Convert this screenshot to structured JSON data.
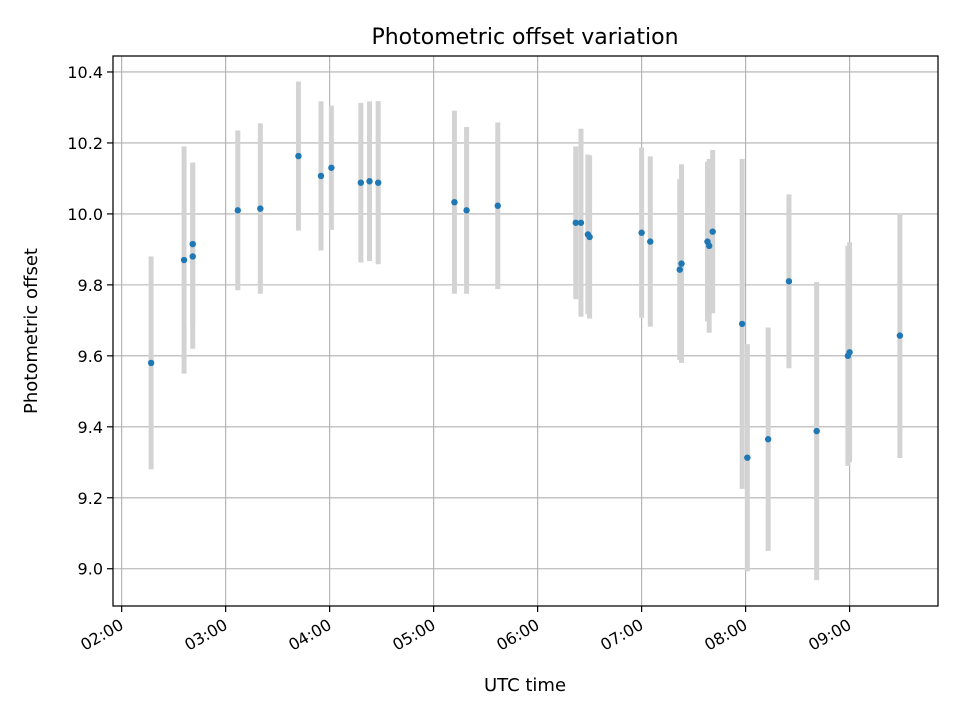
{
  "chart_data": {
    "type": "scatter",
    "title": "Photometric offset variation",
    "xlabel": "UTC time",
    "ylabel": "Photometric offset",
    "xlim": [
      "01:55",
      "09:51"
    ],
    "ylim": [
      8.895,
      10.445
    ],
    "grid": true,
    "x_ticks": [
      "02:00",
      "03:00",
      "04:00",
      "05:00",
      "06:00",
      "07:00",
      "08:00",
      "09:00"
    ],
    "y_ticks": [
      "9.0",
      "9.2",
      "9.4",
      "9.6",
      "9.8",
      "10.0",
      "10.2",
      "10.4"
    ],
    "colors": {
      "marker": "#1f77b4",
      "errorbar": "#d3d3d3",
      "grid": "#b0b0b0"
    },
    "points": [
      {
        "x": "02:17",
        "y": 9.58,
        "yerr": 0.3
      },
      {
        "x": "02:36",
        "y": 9.87,
        "yerr": 0.32
      },
      {
        "x": "02:41",
        "y": 9.88,
        "yerr": 0.26
      },
      {
        "x": "02:41",
        "y": 9.915,
        "yerr": 0.23
      },
      {
        "x": "03:07",
        "y": 10.01,
        "yerr": 0.225
      },
      {
        "x": "03:20",
        "y": 10.015,
        "yerr": 0.24
      },
      {
        "x": "03:42",
        "y": 10.163,
        "yerr": 0.21
      },
      {
        "x": "03:55",
        "y": 10.107,
        "yerr": 0.21
      },
      {
        "x": "04:01",
        "y": 10.13,
        "yerr": 0.175
      },
      {
        "x": "04:18",
        "y": 10.088,
        "yerr": 0.225
      },
      {
        "x": "04:23",
        "y": 10.092,
        "yerr": 0.225
      },
      {
        "x": "04:28",
        "y": 10.088,
        "yerr": 0.23
      },
      {
        "x": "05:12",
        "y": 10.033,
        "yerr": 0.258
      },
      {
        "x": "05:19",
        "y": 10.01,
        "yerr": 0.235
      },
      {
        "x": "05:37",
        "y": 10.023,
        "yerr": 0.235
      },
      {
        "x": "06:22",
        "y": 9.975,
        "yerr": 0.215
      },
      {
        "x": "06:25",
        "y": 9.975,
        "yerr": 0.265
      },
      {
        "x": "06:29",
        "y": 9.942,
        "yerr": 0.225
      },
      {
        "x": "06:30",
        "y": 9.935,
        "yerr": 0.23
      },
      {
        "x": "07:00",
        "y": 9.947,
        "yerr": 0.24
      },
      {
        "x": "07:05",
        "y": 9.922,
        "yerr": 0.24
      },
      {
        "x": "07:22",
        "y": 9.843,
        "yerr": 0.255
      },
      {
        "x": "07:23",
        "y": 9.86,
        "yerr": 0.28
      },
      {
        "x": "07:38",
        "y": 9.922,
        "yerr": 0.225
      },
      {
        "x": "07:39",
        "y": 9.91,
        "yerr": 0.245
      },
      {
        "x": "07:41",
        "y": 9.95,
        "yerr": 0.23
      },
      {
        "x": "07:58",
        "y": 9.69,
        "yerr": 0.465
      },
      {
        "x": "08:01",
        "y": 9.313,
        "yerr": 0.32
      },
      {
        "x": "08:13",
        "y": 9.365,
        "yerr": 0.315
      },
      {
        "x": "08:25",
        "y": 9.81,
        "yerr": 0.245
      },
      {
        "x": "08:41",
        "y": 9.388,
        "yerr": 0.42
      },
      {
        "x": "08:59",
        "y": 9.6,
        "yerr": 0.31
      },
      {
        "x": "09:00",
        "y": 9.61,
        "yerr": 0.31
      },
      {
        "x": "09:29",
        "y": 9.657,
        "yerr": 0.345
      }
    ]
  }
}
